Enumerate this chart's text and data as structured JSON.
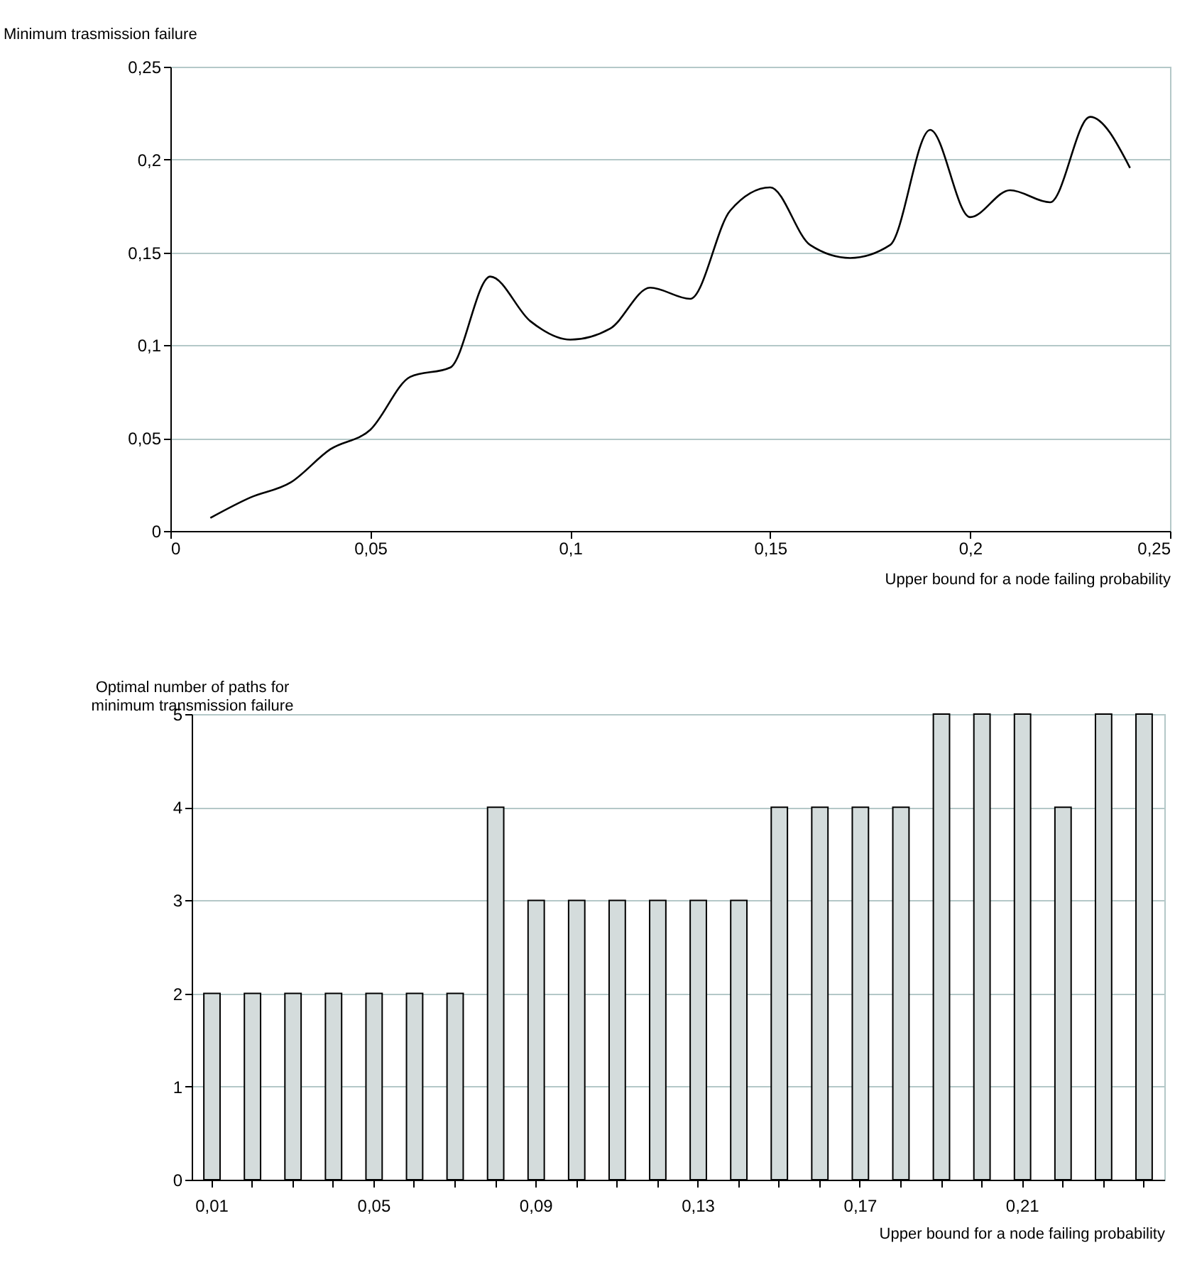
{
  "chart_data": [
    {
      "type": "line",
      "ylabel": "Minimum trasmission failure",
      "xlabel": "Upper bound for a node failing probability",
      "x": [
        0.01,
        0.02,
        0.03,
        0.04,
        0.05,
        0.06,
        0.07,
        0.08,
        0.09,
        0.1,
        0.11,
        0.12,
        0.13,
        0.14,
        0.15,
        0.16,
        0.17,
        0.18,
        0.19,
        0.2,
        0.21,
        0.22,
        0.23,
        0.24
      ],
      "series": [
        {
          "color": "#000000",
          "values": [
            0.007,
            0.018,
            0.026,
            0.044,
            0.0545,
            0.083,
            0.088,
            0.137,
            0.113,
            0.103,
            0.109,
            0.131,
            0.125,
            0.1725,
            0.185,
            0.154,
            0.147,
            0.154,
            0.216,
            0.169,
            0.1835,
            0.177,
            0.223,
            0.1955
          ]
        }
      ],
      "xlim": [
        0,
        0.25
      ],
      "xticks": [
        0,
        {
          "value": 0.05,
          "label": "0,05"
        },
        {
          "value": 0.1,
          "label": "0,1"
        },
        {
          "value": 0.15,
          "label": "0,15"
        },
        {
          "value": 0.2,
          "label": "0,2"
        },
        {
          "value": 0.25,
          "label": "0,25"
        }
      ],
      "ylim": [
        0,
        0.25
      ],
      "yticks": [
        0,
        {
          "value": 0.05,
          "label": "0,05"
        },
        {
          "value": 0.1,
          "label": "0,1"
        },
        {
          "value": 0.15,
          "label": "0,15"
        },
        {
          "value": 0.2,
          "label": "0,2"
        },
        {
          "value": 0.25,
          "label": "0,25"
        }
      ],
      "grid": "y",
      "marker": "none",
      "line_style": "solid"
    },
    {
      "type": "bar",
      "ylabel": "Optimal number of paths for minimum transmission failure",
      "xlabel": "Upper bound for a node failing probability",
      "categories": [
        "0,01",
        null,
        null,
        null,
        "0,05",
        null,
        null,
        null,
        "0,09",
        null,
        null,
        null,
        "0,13",
        null,
        null,
        null,
        "0,17",
        null,
        null,
        null,
        "0,21",
        null,
        null,
        null
      ],
      "series": [
        {
          "color": "#d4dcdc",
          "values": [
            2,
            2,
            2,
            2,
            2,
            2,
            2,
            4,
            3,
            3,
            3,
            3,
            3,
            3,
            4,
            4,
            4,
            4,
            5,
            5,
            5,
            4,
            5,
            5
          ]
        }
      ],
      "ylim": [
        0,
        5
      ],
      "yticks": [
        0,
        1,
        2,
        3,
        4,
        5
      ],
      "grid": "y"
    }
  ]
}
